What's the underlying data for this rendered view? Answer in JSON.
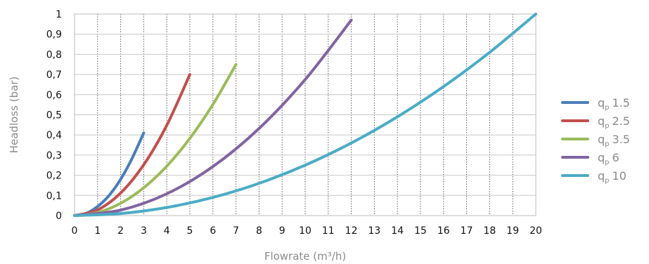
{
  "chart_data": {
    "type": "line",
    "xlabel": "Flowrate (m³/h)",
    "ylabel": "Headloss (bar)",
    "xlim": [
      0,
      20
    ],
    "ylim": [
      0,
      1
    ],
    "grid": true,
    "legend_position": "right",
    "x_ticks": [
      "0",
      "1",
      "2",
      "3",
      "4",
      "5",
      "6",
      "7",
      "8",
      "9",
      "10",
      "11",
      "12",
      "13",
      "14",
      "15",
      "16",
      "17",
      "18",
      "19",
      "20"
    ],
    "y_ticks": [
      "0",
      "0,1",
      "0,2",
      "0,3",
      "0,4",
      "0,5",
      "0,6",
      "0,7",
      "0,8",
      "0,9",
      "1"
    ],
    "series": [
      {
        "name": "1.5",
        "legend_prefix": "q",
        "legend_subscript": "p",
        "color": "#4a7ebb",
        "x": [
          0,
          0.5,
          1,
          1.5,
          2,
          2.5,
          3
        ],
        "y": [
          0,
          0.011,
          0.045,
          0.1,
          0.18,
          0.285,
          0.41
        ]
      },
      {
        "name": "2.5",
        "legend_prefix": "q",
        "legend_subscript": "p",
        "color": "#c0504d",
        "x": [
          0,
          1,
          2,
          3,
          4,
          5
        ],
        "y": [
          0,
          0.028,
          0.112,
          0.252,
          0.448,
          0.7
        ]
      },
      {
        "name": "3.5",
        "legend_prefix": "q",
        "legend_subscript": "p",
        "color": "#9bbb59",
        "x": [
          0,
          1,
          2,
          3,
          4,
          5,
          6,
          7
        ],
        "y": [
          0,
          0.015,
          0.061,
          0.138,
          0.245,
          0.383,
          0.551,
          0.75
        ]
      },
      {
        "name": "6",
        "legend_prefix": "q",
        "legend_subscript": "p",
        "color": "#8064a2",
        "x": [
          0,
          2,
          4,
          6,
          8,
          10,
          12
        ],
        "y": [
          0,
          0.027,
          0.108,
          0.243,
          0.432,
          0.675,
          0.97
        ]
      },
      {
        "name": "10",
        "legend_prefix": "q",
        "legend_subscript": "p",
        "color": "#4bacc6",
        "x": [
          0,
          2,
          4,
          6,
          8,
          10,
          12,
          14,
          16,
          18,
          20
        ],
        "y": [
          0,
          0.01,
          0.04,
          0.09,
          0.16,
          0.25,
          0.36,
          0.49,
          0.64,
          0.81,
          1.0
        ]
      }
    ]
  }
}
